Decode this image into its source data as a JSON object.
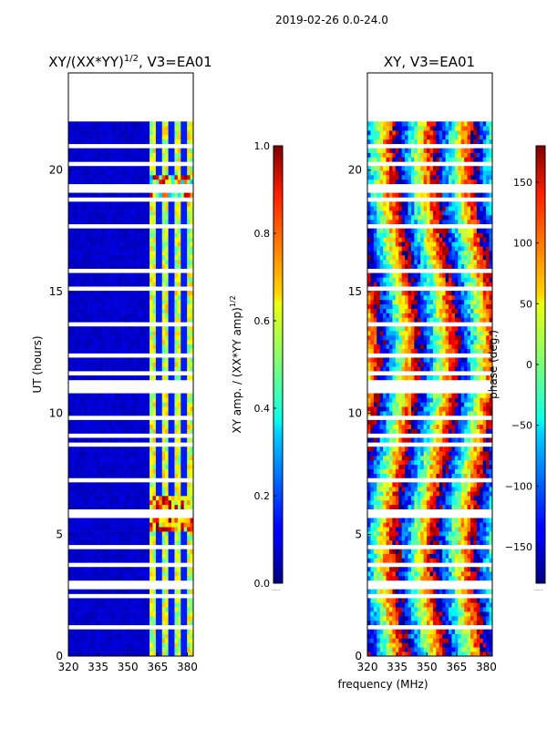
{
  "figure": {
    "suptitle": "2019-02-26 0.0-24.0",
    "xlabel": "frequency (MHz)"
  },
  "chart_data": [
    {
      "type": "heatmap",
      "title": "XY/(XX*YY)",
      "title_superscript": "1/2",
      "title_suffix": ", V3=EA01",
      "ylabel": "UT (hours)",
      "x_ticks": [
        320,
        335,
        350,
        365,
        380
      ],
      "y_ticks": [
        0,
        5,
        10,
        15,
        20
      ],
      "xlim": [
        320,
        383
      ],
      "ylim": [
        0,
        24
      ],
      "data_extent_hours": [
        0,
        22
      ],
      "colorbar": {
        "label": "XY amp. / (XX*YY amp)",
        "label_superscript": "1/2",
        "range": [
          0.0,
          1.0
        ],
        "ticks": [
          "0.0",
          "0.2",
          "0.4",
          "0.6",
          "0.8",
          "1.0"
        ],
        "colormap": "jet"
      }
    },
    {
      "type": "heatmap",
      "title": "XY, V3=EA01",
      "x_ticks": [
        320,
        335,
        350,
        365,
        380
      ],
      "y_ticks": [
        0,
        5,
        10,
        15,
        20
      ],
      "xlim": [
        320,
        383
      ],
      "ylim": [
        0,
        24
      ],
      "data_extent_hours": [
        0,
        22
      ],
      "colorbar": {
        "label": "phase (deg.)",
        "range": [
          -180,
          180
        ],
        "ticks": [
          "−150",
          "−100",
          "−50",
          "0",
          "50",
          "100",
          "150"
        ],
        "tick_values": [
          -150,
          -100,
          -50,
          0,
          50,
          100,
          150
        ],
        "colormap": "jet"
      }
    }
  ]
}
